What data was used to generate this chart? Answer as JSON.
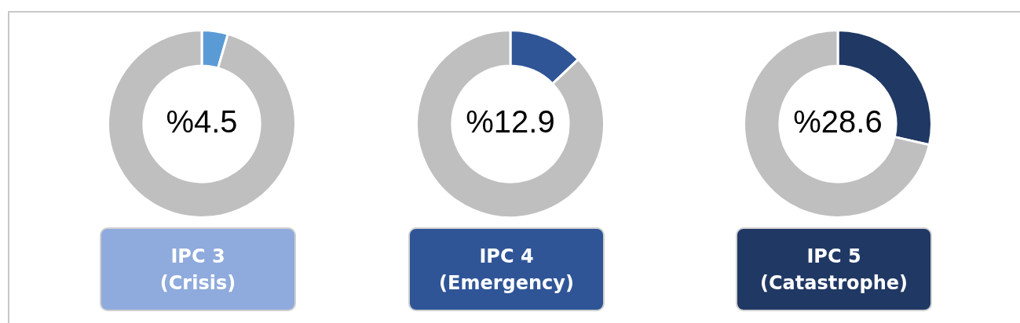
{
  "chart_data": [
    {
      "type": "donut",
      "title": "IPC 3\n(Crisis)",
      "categories": [
        null,
        null
      ],
      "values": [
        4.5,
        95.5
      ],
      "value_labels": [
        "%4.5",
        null
      ],
      "colors": [
        "#5b9bd5",
        "#bfbfbf"
      ],
      "legend": false
    },
    {
      "type": "donut",
      "title": "IPC 4\n(Emergency)",
      "categories": [
        null,
        null
      ],
      "values": [
        12.9,
        87.1
      ],
      "value_labels": [
        "%12.9",
        null
      ],
      "colors": [
        "#2f5597",
        "#bfbfbf"
      ],
      "legend": false
    },
    {
      "type": "donut",
      "title": "IPC 5\n(Catastrophe)",
      "categories": [
        null,
        null
      ],
      "values": [
        28.6,
        71.4
      ],
      "value_labels": [
        "%28.6",
        null
      ],
      "colors": [
        "#1f3864",
        "#bfbfbf"
      ],
      "legend": false
    }
  ]
}
